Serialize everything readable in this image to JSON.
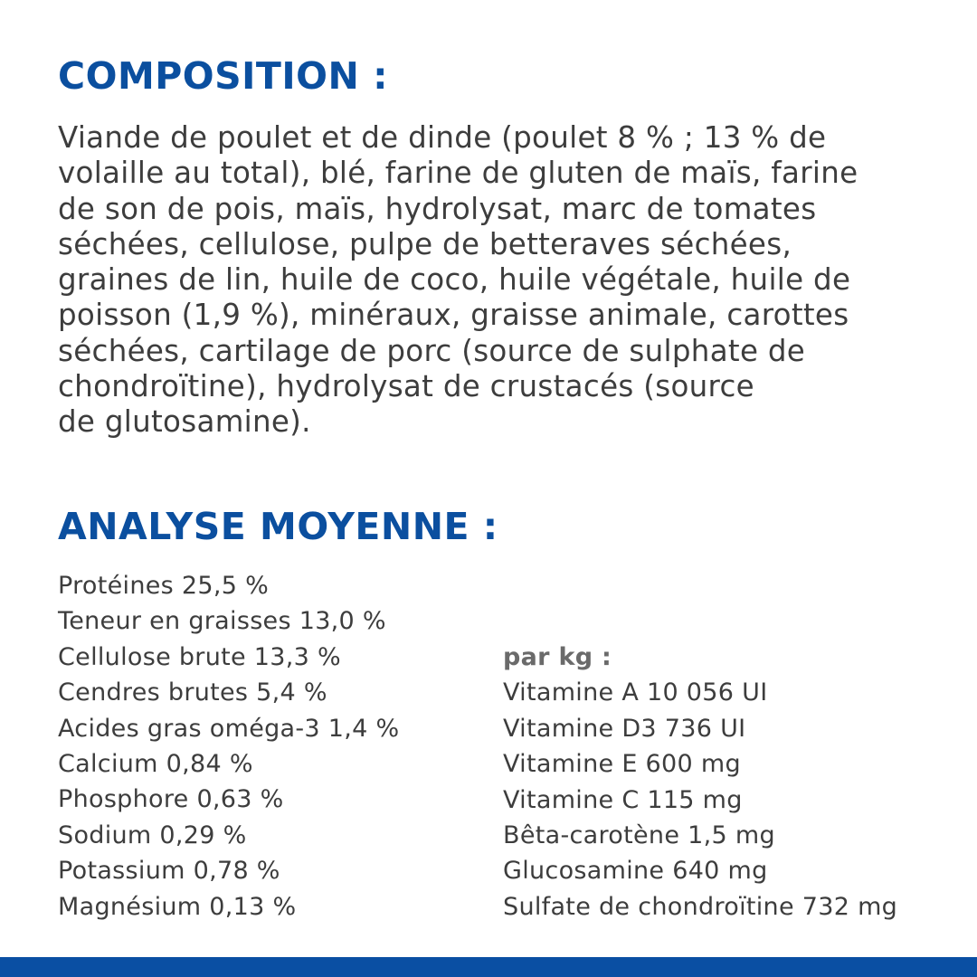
{
  "composition": {
    "title": "COMPOSITION :",
    "lines": [
      "Viande de poulet et de dinde (poulet 8 % ; 13 % de",
      "volaille au total), blé, farine de gluten de maïs, farine",
      "de son de pois, maïs, hydrolysat, marc de tomates",
      "séchées, cellulose, pulpe de betteraves séchées,",
      "graines de lin, huile de coco, huile végétale, huile de",
      "poisson (1,9 %), minéraux, graisse animale, carottes",
      "séchées, cartilage de porc (source de sulphate de",
      "chondroïtine), hydrolysat de crustacés (source",
      "de glutosamine)."
    ]
  },
  "analysis": {
    "title": "ANALYSE MOYENNE :",
    "left": [
      "Protéines 25,5 %",
      "Teneur en graisses 13,0 %",
      "Cellulose brute 13,3 %",
      "Cendres brutes 5,4 %",
      "Acides gras oméga-3 1,4 %",
      "Calcium 0,84 %",
      "Phosphore 0,63 %",
      "Sodium 0,29 %",
      "Potassium 0,78 %",
      "Magnésium 0,13 %"
    ],
    "right_heading": "par kg :",
    "right": [
      "Vitamine A 10 056 UI",
      "Vitamine D3 736 UI",
      "Vitamine E 600 mg",
      "Vitamine C 115 mg",
      "Bêta-carotène 1,5 mg",
      "Glucosamine 640 mg",
      "Sulfate de chondroïtine 732 mg"
    ]
  },
  "colors": {
    "heading": "#0b4f9f",
    "text": "#3d3d3d",
    "footer_bar": "#0a4fa3"
  }
}
